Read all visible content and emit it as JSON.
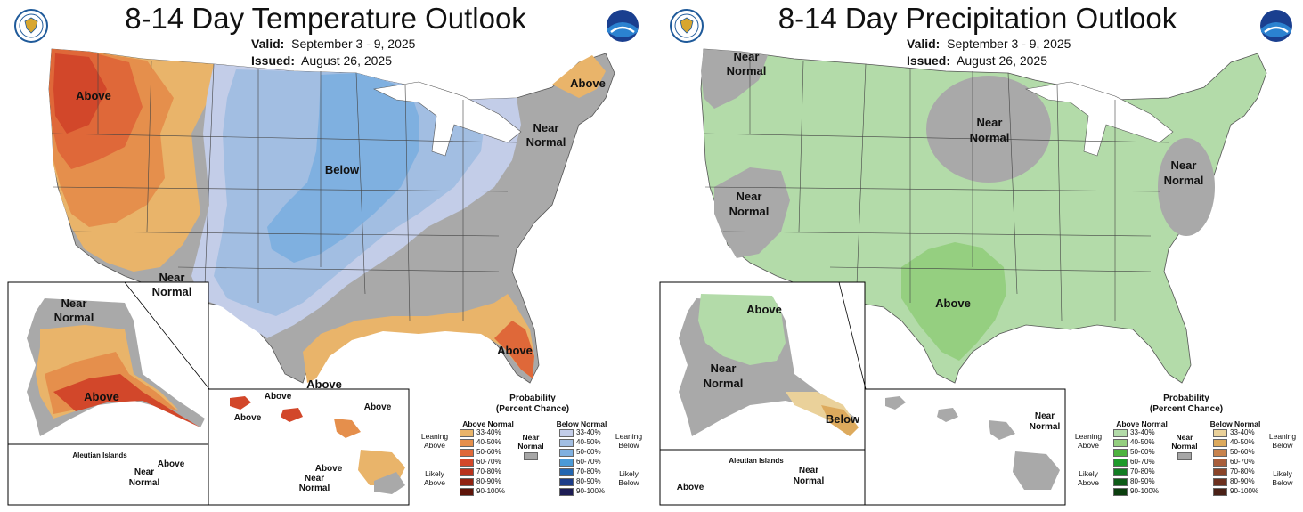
{
  "temperature": {
    "title": "8-14 Day Temperature Outlook",
    "valid_label": "Valid:",
    "valid": "September 3 - 9, 2025",
    "issued_label": "Issued:",
    "issued": "August 26, 2025",
    "map_labels": {
      "above_west": "Above",
      "below_central": "Below",
      "near_normal_sw_1": "Near",
      "near_normal_sw_2": "Normal",
      "near_normal_ne_1": "Near",
      "near_normal_ne_2": "Normal",
      "above_ne": "Above",
      "above_fl": "Above",
      "above_gulf": "Above",
      "ak_near_1": "Near",
      "ak_near_2": "Normal",
      "ak_above": "Above",
      "aleutian_title": "Aleutian Islands",
      "aleutian_above": "Above",
      "aleutian_near_1": "Near",
      "aleutian_near_2": "Normal",
      "hi_above_1": "Above",
      "hi_above_2": "Above",
      "hi_above_3": "Above",
      "hi_above_4": "Above",
      "hi_near_1": "Near",
      "hi_near_2": "Normal"
    },
    "legend": {
      "title_1": "Probability",
      "title_2": "(Percent Chance)",
      "above_head": "Above Normal",
      "below_head": "Below Normal",
      "near_head_1": "Near",
      "near_head_2": "Normal",
      "leaning_above_1": "Leaning",
      "leaning_above_2": "Above",
      "likely_above_1": "Likely",
      "likely_above_2": "Above",
      "leaning_below_1": "Leaning",
      "leaning_below_2": "Below",
      "likely_below_1": "Likely",
      "likely_below_2": "Below",
      "ranges": [
        "33-40%",
        "40-50%",
        "50-60%",
        "60-70%",
        "70-80%",
        "80-90%",
        "90-100%"
      ],
      "above_colors": [
        "#e9b46a",
        "#e58f4c",
        "#df6839",
        "#d2472a",
        "#b8321d",
        "#902212",
        "#5e1409"
      ],
      "below_colors": [
        "#c3cde8",
        "#a2bee2",
        "#7fb0e0",
        "#4b9ad6",
        "#2366b1",
        "#1c3c88",
        "#1d1c54"
      ],
      "near_color": "#a6a6a6"
    }
  },
  "precipitation": {
    "title": "8-14 Day Precipitation Outlook",
    "valid_label": "Valid:",
    "valid": "September 3 - 9, 2025",
    "issued_label": "Issued:",
    "issued": "August 26, 2025",
    "map_labels": {
      "near_nw_1": "Near",
      "near_nw_2": "Normal",
      "near_north_1": "Near",
      "near_north_2": "Normal",
      "near_ca_1": "Near",
      "near_ca_2": "Normal",
      "near_east_1": "Near",
      "near_east_2": "Normal",
      "above_south": "Above",
      "ak_above": "Above",
      "ak_near_1": "Near",
      "ak_near_2": "Normal",
      "ak_below": "Below",
      "aleutian_title": "Aleutian Islands",
      "aleutian_above": "Above",
      "aleutian_near_1": "Near",
      "aleutian_near_2": "Normal",
      "hi_near_1": "Near",
      "hi_near_2": "Normal"
    },
    "legend": {
      "title_1": "Probability",
      "title_2": "(Percent Chance)",
      "above_head": "Above Normal",
      "below_head": "Below Normal",
      "near_head_1": "Near",
      "near_head_2": "Normal",
      "leaning_above_1": "Leaning",
      "leaning_above_2": "Above",
      "likely_above_1": "Likely",
      "likely_above_2": "Above",
      "leaning_below_1": "Leaning",
      "leaning_below_2": "Below",
      "likely_below_1": "Likely",
      "likely_below_2": "Below",
      "ranges": [
        "33-40%",
        "40-50%",
        "50-60%",
        "60-70%",
        "70-80%",
        "80-90%",
        "90-100%"
      ],
      "above_colors": [
        "#b3dba9",
        "#95cf80",
        "#4eb33f",
        "#1f9a2b",
        "#137c23",
        "#0e5b18",
        "#0b3e0e"
      ],
      "below_colors": [
        "#ead19a",
        "#ddaa5d",
        "#c8834e",
        "#a85e3c",
        "#8a4429",
        "#6d3120",
        "#4a2116"
      ],
      "near_color": "#a6a6a6"
    }
  }
}
